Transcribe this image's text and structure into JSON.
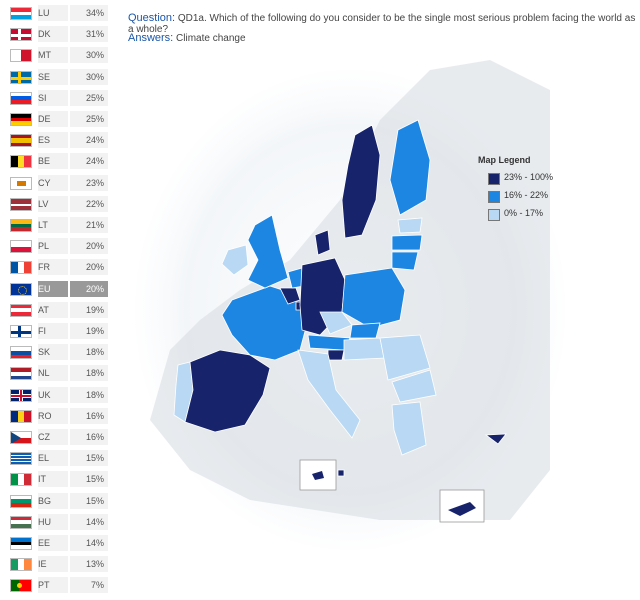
{
  "question": {
    "label": "Question:",
    "text": "QD1a. Which of the following do you consider to be the single most serious problem facing the world as a whole?"
  },
  "answers": {
    "label": "Answers:",
    "text": "Climate change"
  },
  "legend": {
    "title": "Map Legend",
    "items": [
      {
        "label": "23% - 100%",
        "color": "#17236b"
      },
      {
        "label": "16% - 22%",
        "color": "#1d86e3"
      },
      {
        "label": "0% - 17%",
        "color": "#b8d8f3"
      }
    ]
  },
  "countries": [
    {
      "code": "LU",
      "value": "34%",
      "flag": "lu"
    },
    {
      "code": "DK",
      "value": "31%",
      "flag": "dk"
    },
    {
      "code": "MT",
      "value": "30%",
      "flag": "mt"
    },
    {
      "code": "SE",
      "value": "30%",
      "flag": "se"
    },
    {
      "code": "SI",
      "value": "25%",
      "flag": "si"
    },
    {
      "code": "DE",
      "value": "25%",
      "flag": "de"
    },
    {
      "code": "ES",
      "value": "24%",
      "flag": "es"
    },
    {
      "code": "BE",
      "value": "24%",
      "flag": "be"
    },
    {
      "code": "CY",
      "value": "23%",
      "flag": "cy"
    },
    {
      "code": "LV",
      "value": "22%",
      "flag": "lv"
    },
    {
      "code": "LT",
      "value": "21%",
      "flag": "lt"
    },
    {
      "code": "PL",
      "value": "20%",
      "flag": "pl"
    },
    {
      "code": "FR",
      "value": "20%",
      "flag": "fr"
    },
    {
      "code": "EU",
      "value": "20%",
      "flag": "eu",
      "highlight": true
    },
    {
      "code": "AT",
      "value": "19%",
      "flag": "at"
    },
    {
      "code": "FI",
      "value": "19%",
      "flag": "fi"
    },
    {
      "code": "SK",
      "value": "18%",
      "flag": "sk"
    },
    {
      "code": "NL",
      "value": "18%",
      "flag": "nl"
    },
    {
      "code": "UK",
      "value": "18%",
      "flag": "uk"
    },
    {
      "code": "RO",
      "value": "16%",
      "flag": "ro"
    },
    {
      "code": "CZ",
      "value": "16%",
      "flag": "cz"
    },
    {
      "code": "EL",
      "value": "15%",
      "flag": "el"
    },
    {
      "code": "IT",
      "value": "15%",
      "flag": "it"
    },
    {
      "code": "BG",
      "value": "15%",
      "flag": "bg"
    },
    {
      "code": "HU",
      "value": "14%",
      "flag": "hu"
    },
    {
      "code": "EE",
      "value": "14%",
      "flag": "ee"
    },
    {
      "code": "IE",
      "value": "13%",
      "flag": "ie"
    },
    {
      "code": "PT",
      "value": "7%",
      "flag": "pt"
    }
  ]
}
